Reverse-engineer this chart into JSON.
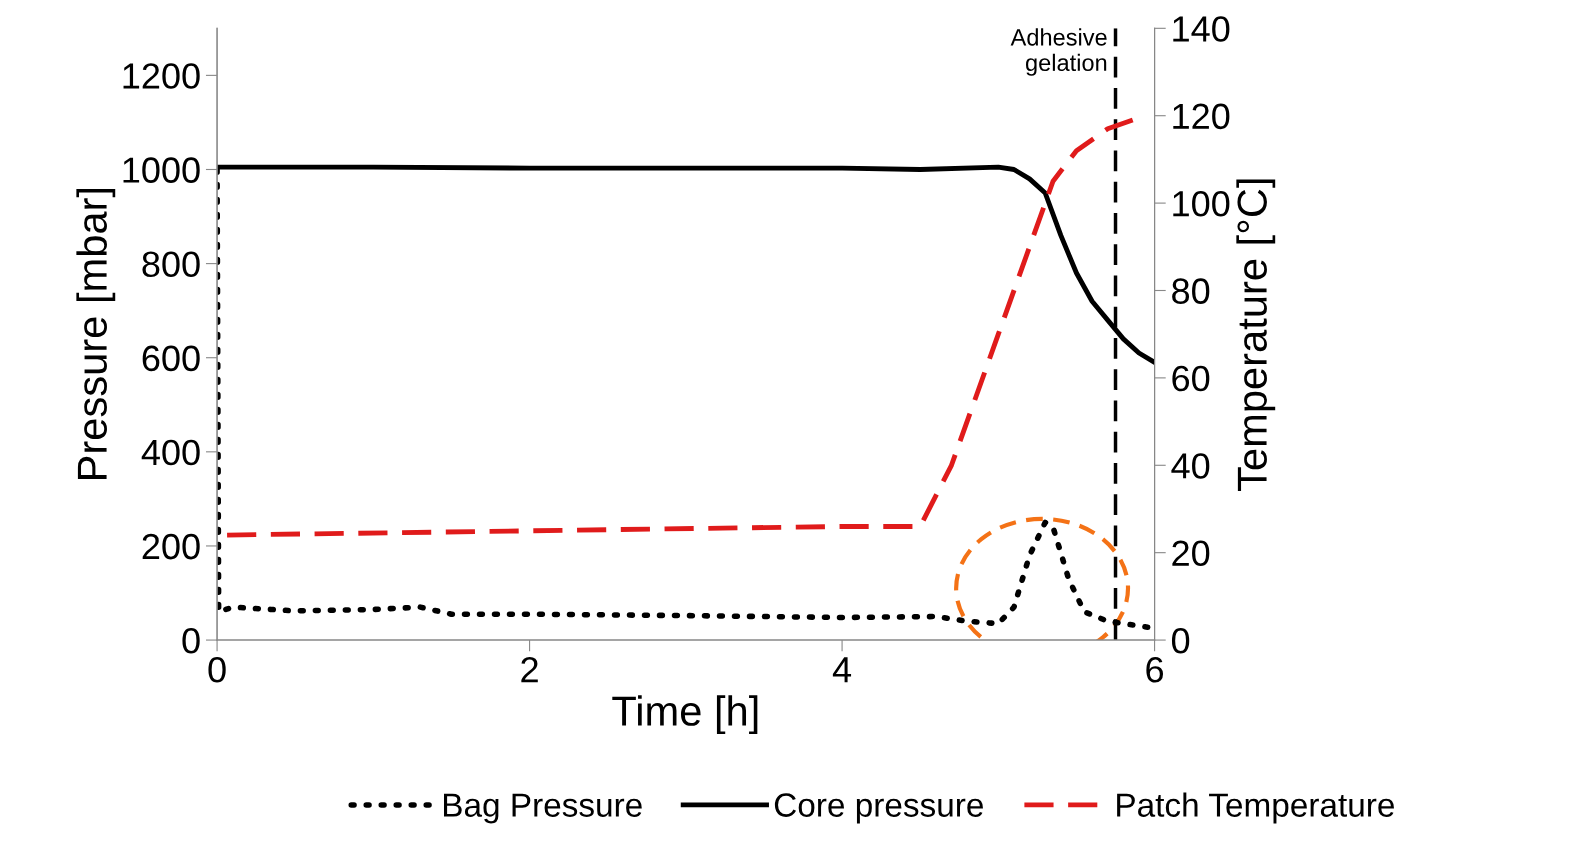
{
  "chart_data": {
    "type": "line",
    "xlabel": "Time [h]",
    "ylabel": "Pressure [mbar]",
    "y2label": "Temperature [°C]",
    "xlim": [
      0,
      6
    ],
    "xticks": [
      0,
      2,
      4,
      6
    ],
    "ylim": [
      0,
      1300
    ],
    "yticks": [
      0,
      200,
      400,
      600,
      800,
      1000,
      1200
    ],
    "y2lim": [
      0,
      140
    ],
    "y2ticks": [
      0,
      20,
      40,
      60,
      80,
      100,
      120,
      140
    ],
    "grid": false,
    "legend": "bottom",
    "series": [
      {
        "name": "Bag Pressure",
        "color": "#000000",
        "line_style": "dotted",
        "x": [
          0,
          0.01,
          0.1,
          0.5,
          1,
          1.3,
          1.5,
          2,
          3,
          4,
          4.6,
          4.8,
          5.0,
          5.1,
          5.2,
          5.3,
          5.35,
          5.45,
          5.55,
          5.7,
          6.0
        ],
        "values": [
          1000,
          60,
          70,
          62,
          65,
          70,
          55,
          55,
          52,
          48,
          50,
          40,
          35,
          70,
          180,
          250,
          240,
          130,
          60,
          40,
          25
        ]
      },
      {
        "name": "Core pressure",
        "color": "#000000",
        "line_style": "solid",
        "x": [
          0,
          1,
          2,
          3,
          4,
          4.5,
          5,
          5.1,
          5.2,
          5.3,
          5.4,
          5.5,
          5.6,
          5.7,
          5.8,
          5.9,
          6
        ],
        "values": [
          1005,
          1005,
          1003,
          1003,
          1003,
          1000,
          1005,
          1000,
          980,
          950,
          860,
          780,
          720,
          680,
          640,
          610,
          590
        ]
      },
      {
        "name": "Patch Temperature",
        "color": "#e01b1b",
        "line_style": "dashed",
        "axis": "y2",
        "x": [
          0,
          2,
          4,
          4.5,
          4.7,
          5.0,
          5.2,
          5.35,
          5.5,
          5.7,
          5.86
        ],
        "values": [
          24,
          25,
          26,
          26,
          40,
          70,
          90,
          105,
          112,
          117,
          119
        ]
      }
    ],
    "ref_lines": [
      {
        "axis": "x",
        "value": 5.75,
        "label": "Adhesive\ngelation",
        "color": "#000000",
        "line_style": "dashed"
      }
    ]
  }
}
